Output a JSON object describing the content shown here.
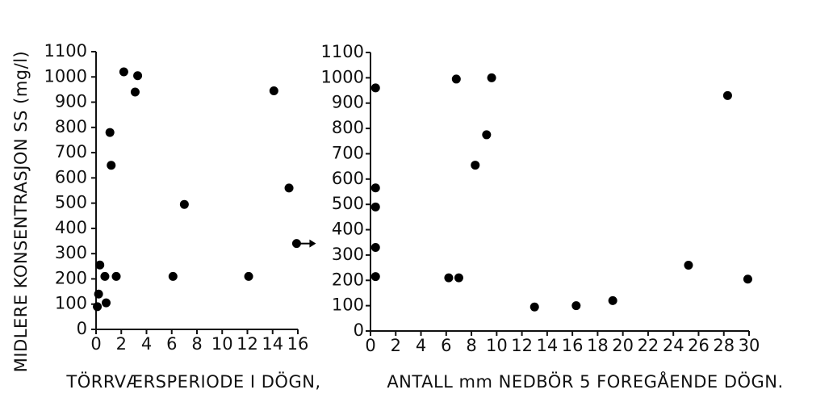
{
  "figure": {
    "ylabel": "MIDLERE KONSENTRASJON SS (mg/l)"
  },
  "chart_data": [
    {
      "type": "scatter",
      "title": "",
      "xlabel": "TÖRRVÆRSPERIODE I DÖGN,",
      "ylabel": "MIDLERE KONSENTRASJON SS (mg/l)",
      "xlim": [
        0,
        16
      ],
      "ylim": [
        0,
        1100
      ],
      "x_ticks": [
        0,
        2,
        4,
        6,
        8,
        10,
        12,
        14,
        16
      ],
      "y_ticks": [
        0,
        100,
        200,
        300,
        400,
        500,
        600,
        700,
        800,
        900,
        1000,
        1100
      ],
      "grid": false,
      "points": [
        {
          "x": 0.1,
          "y": 90
        },
        {
          "x": 0.2,
          "y": 140
        },
        {
          "x": 0.3,
          "y": 255
        },
        {
          "x": 0.7,
          "y": 210
        },
        {
          "x": 0.8,
          "y": 105
        },
        {
          "x": 1.1,
          "y": 780
        },
        {
          "x": 1.2,
          "y": 650
        },
        {
          "x": 1.6,
          "y": 210
        },
        {
          "x": 2.2,
          "y": 1020
        },
        {
          "x": 3.1,
          "y": 940
        },
        {
          "x": 3.3,
          "y": 1005
        },
        {
          "x": 6.1,
          "y": 210
        },
        {
          "x": 7.0,
          "y": 495
        },
        {
          "x": 12.1,
          "y": 210
        },
        {
          "x": 14.1,
          "y": 945
        },
        {
          "x": 15.3,
          "y": 560
        },
        {
          "x": 15.9,
          "y": 340
        }
      ],
      "annotations": [
        {
          "type": "arrow",
          "direction": "right",
          "at_point": {
            "x": 15.9,
            "y": 340
          }
        }
      ]
    },
    {
      "type": "scatter",
      "title": "",
      "xlabel": "ANTALL mm NEDBÖR 5 FOREGÅENDE DÖGN.",
      "ylabel": "",
      "xlim": [
        0,
        30
      ],
      "ylim": [
        0,
        1100
      ],
      "x_ticks": [
        0,
        2,
        4,
        6,
        8,
        10,
        12,
        14,
        16,
        18,
        20,
        22,
        24,
        26,
        28,
        30
      ],
      "y_ticks": [
        0,
        100,
        200,
        300,
        400,
        500,
        600,
        700,
        800,
        900,
        1000,
        1100
      ],
      "grid": false,
      "points": [
        {
          "x": 0.4,
          "y": 960
        },
        {
          "x": 0.4,
          "y": 565
        },
        {
          "x": 0.4,
          "y": 490
        },
        {
          "x": 0.4,
          "y": 330
        },
        {
          "x": 0.4,
          "y": 215
        },
        {
          "x": 6.2,
          "y": 210
        },
        {
          "x": 6.8,
          "y": 995
        },
        {
          "x": 7.0,
          "y": 210
        },
        {
          "x": 8.3,
          "y": 655
        },
        {
          "x": 9.2,
          "y": 775
        },
        {
          "x": 9.6,
          "y": 1000
        },
        {
          "x": 13.0,
          "y": 95
        },
        {
          "x": 16.3,
          "y": 100
        },
        {
          "x": 19.2,
          "y": 120
        },
        {
          "x": 25.2,
          "y": 260
        },
        {
          "x": 28.3,
          "y": 930
        },
        {
          "x": 29.9,
          "y": 205
        }
      ]
    }
  ]
}
